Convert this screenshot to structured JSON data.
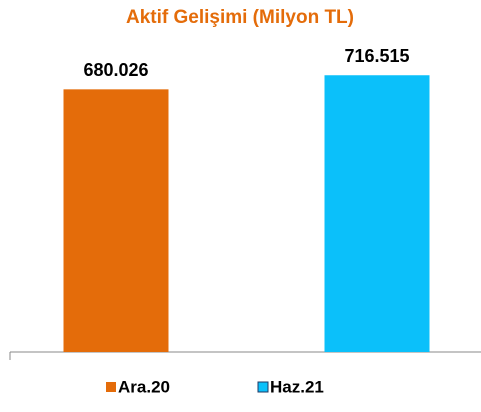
{
  "chart_data": {
    "type": "bar",
    "title": "Aktif Gelişimi (Milyon TL)",
    "categories": [
      "Ara.20",
      "Haz.21"
    ],
    "values": [
      680026,
      716515
    ],
    "value_labels": [
      "680.026",
      "716.515"
    ],
    "colors": [
      "#e46c0a",
      "#0bc0fa"
    ],
    "ylim": [
      0,
      800000
    ]
  }
}
